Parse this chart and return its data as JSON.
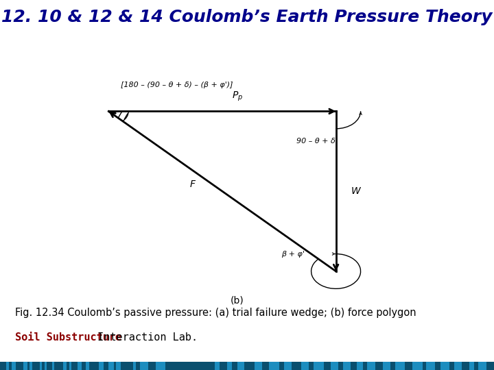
{
  "title": "12. 10 & 12 & 14 Coulomb’s Earth Pressure Theory",
  "title_color": "#00008B",
  "title_fontsize": 18,
  "caption": "Fig. 12.34 Coulomb’s passive pressure: (a) trial failure wedge; (b) force polygon",
  "caption_fontsize": 10.5,
  "footer_soil": "Soil Substructure",
  "footer_soil_color": "#8B0000",
  "footer_rest": " Interaction Lab.",
  "footer_fontsize": 11,
  "bg_color": "#ffffff",
  "A": [
    0.22,
    0.68
  ],
  "B": [
    0.68,
    0.68
  ],
  "C": [
    0.68,
    0.22
  ],
  "angle_label_top": "[180 – (90 – θ + δ) – (β + φ')]",
  "label_Pp": "$P_p$",
  "label_F": "F",
  "label_W": "W",
  "label_angle1": "90 – θ + δ",
  "label_angle2": "β + φ'",
  "label_b": "(b)",
  "stripe_colors": [
    "#1c8dbf",
    "#0a5a7a",
    "#1c8dbf",
    "#1c8dbf",
    "#0a5a7a",
    "#1c8dbf",
    "#1c8dbf",
    "#1c8dbf",
    "#0a5a7a",
    "#1c8dbf",
    "#1c8dbf",
    "#0a5a7a",
    "#1c8dbf",
    "#1c8dbf",
    "#0a5a7a",
    "#1c8dbf",
    "#1c8dbf",
    "#1c8dbf",
    "#0a4f6e",
    "#0a4f6e",
    "#0a4f6e",
    "#0a4f6e",
    "#0a4f6e",
    "#1c8dbf",
    "#1c8dbf",
    "#0a5a7a",
    "#1c8dbf",
    "#1c8dbf",
    "#1c8dbf",
    "#1c8dbf",
    "#1c8dbf",
    "#1c8dbf",
    "#1c8dbf",
    "#1c8dbf",
    "#1c8dbf",
    "#1c8dbf",
    "#1c8dbf",
    "#1c8dbf",
    "#1c8dbf",
    "#1c8dbf",
    "#1c8dbf",
    "#1c8dbf",
    "#1c8dbf",
    "#1c8dbf",
    "#1c8dbf",
    "#1c8dbf",
    "#1c8dbf",
    "#1c8dbf",
    "#1c8dbf",
    "#1c8dbf"
  ]
}
